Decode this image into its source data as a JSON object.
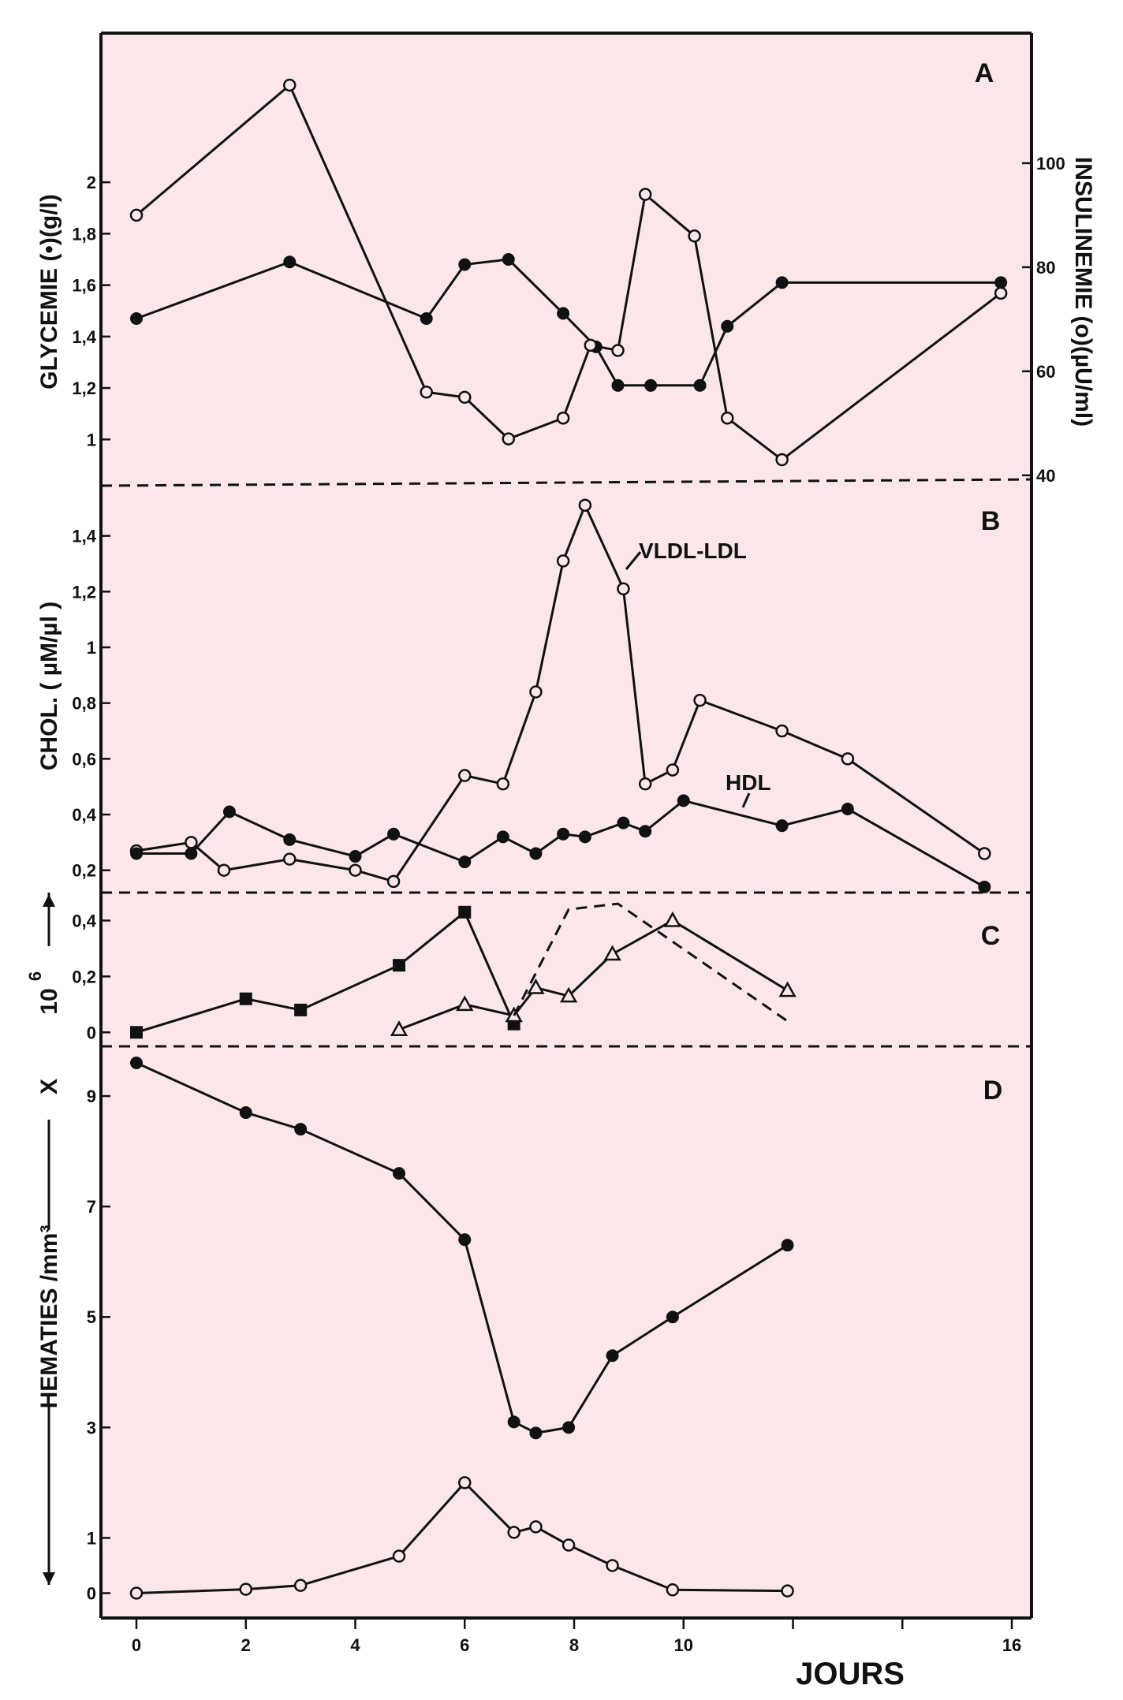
{
  "colors": {
    "panel_bg": "#fbe6e8",
    "ink": "#111111",
    "page_bg": "#ffffff"
  },
  "x_axis": {
    "label": "JOURS",
    "range": [
      0,
      16
    ],
    "ticks": [
      {
        "value": 0,
        "label": "0"
      },
      {
        "value": 2,
        "label": "2"
      },
      {
        "value": 4,
        "label": "4"
      },
      {
        "value": 6,
        "label": "6"
      },
      {
        "value": 8,
        "label": "8"
      },
      {
        "value": 10,
        "label": "10"
      },
      {
        "value": 16,
        "label": "16"
      }
    ]
  },
  "chart_data": [
    {
      "panel": "A",
      "type": "line",
      "ylabel_left": "GLYCEMIE (•)(g/l)",
      "ylabel_right": "INSULINEMIE (o)(µU/ml)",
      "ylim_left": [
        0.82,
        2.58
      ],
      "ylim_right": [
        38,
        125
      ],
      "yticks_left": [
        {
          "value": 1,
          "label": "1"
        },
        {
          "value": 1.2,
          "label": "1,2"
        },
        {
          "value": 1.4,
          "label": "1,4"
        },
        {
          "value": 1.6,
          "label": "1,6"
        },
        {
          "value": 1.8,
          "label": "1,8"
        },
        {
          "value": 2,
          "label": "2"
        }
      ],
      "yticks_right": [
        {
          "value": 40,
          "label": "40"
        },
        {
          "value": 60,
          "label": "60"
        },
        {
          "value": 80,
          "label": "80"
        },
        {
          "value": 100,
          "label": "100"
        }
      ],
      "series": [
        {
          "name": "Glycémie",
          "marker": "filled-circle",
          "axis": "left",
          "x": [
            0,
            2.8,
            5.3,
            6,
            6.8,
            7.8,
            8.4,
            8.8,
            9.4,
            10.3,
            10.8,
            11.8,
            15.8
          ],
          "y": [
            1.47,
            1.69,
            1.47,
            1.68,
            1.7,
            1.49,
            1.36,
            1.21,
            1.21,
            1.21,
            1.44,
            1.61,
            1.61
          ]
        },
        {
          "name": "Insulinémie",
          "marker": "open-circle",
          "axis": "right",
          "x": [
            0,
            2.8,
            5.3,
            6,
            6.8,
            7.8,
            8.3,
            8.8,
            9.3,
            10.2,
            10.8,
            11.8,
            15.8
          ],
          "y": [
            90,
            115,
            56,
            55,
            47,
            51,
            65,
            64,
            94,
            86,
            51,
            43,
            75
          ]
        }
      ]
    },
    {
      "panel": "B",
      "type": "line",
      "ylabel": "CHOL. ( µM/µl )",
      "ylim": [
        0.12,
        1.58
      ],
      "yticks": [
        {
          "value": 0.2,
          "label": "0,2"
        },
        {
          "value": 0.4,
          "label": "0,4"
        },
        {
          "value": 0.6,
          "label": "0,6"
        },
        {
          "value": 0.8,
          "label": "0,8"
        },
        {
          "value": 1,
          "label": "1"
        },
        {
          "value": 1.2,
          "label": "1,2"
        },
        {
          "value": 1.4,
          "label": "1,4"
        }
      ],
      "series": [
        {
          "name": "VLDL-LDL",
          "marker": "open-circle",
          "x": [
            0,
            1,
            1.6,
            2.8,
            4,
            4.7,
            6,
            6.7,
            7.3,
            7.8,
            8.2,
            8.9,
            9.3,
            9.8,
            10.3,
            11.8,
            13,
            15.5
          ],
          "y": [
            0.27,
            0.3,
            0.2,
            0.24,
            0.2,
            0.16,
            0.54,
            0.51,
            0.84,
            1.31,
            1.51,
            1.21,
            0.51,
            0.56,
            0.81,
            0.7,
            0.6,
            0.26
          ]
        },
        {
          "name": "HDL",
          "marker": "filled-circle",
          "x": [
            0,
            1,
            1.7,
            2.8,
            4,
            4.7,
            6,
            6.7,
            7.3,
            7.8,
            8.2,
            8.9,
            9.3,
            10,
            11.8,
            13,
            15.5
          ],
          "y": [
            0.26,
            0.26,
            0.41,
            0.31,
            0.25,
            0.33,
            0.23,
            0.32,
            0.26,
            0.33,
            0.32,
            0.37,
            0.34,
            0.45,
            0.36,
            0.42,
            0.14
          ]
        }
      ],
      "annotations": [
        "VLDL-LDL",
        "HDL"
      ]
    },
    {
      "panel": "C",
      "type": "line",
      "ylim": [
        -0.05,
        0.5
      ],
      "yticks": [
        {
          "value": 0,
          "label": "0"
        },
        {
          "value": 0.2,
          "label": "0,2"
        },
        {
          "value": 0.4,
          "label": "0,4"
        }
      ],
      "series": [
        {
          "name": "filled-square series",
          "marker": "filled-square",
          "x": [
            0,
            2,
            3,
            4.8,
            6,
            6.9
          ],
          "y": [
            0,
            0.12,
            0.08,
            0.24,
            0.43,
            0.03
          ]
        },
        {
          "name": "open-triangle series",
          "marker": "open-triangle",
          "x": [
            4.8,
            6,
            6.9,
            7.3,
            7.9,
            8.7,
            9.8,
            11.9
          ],
          "y": [
            0.01,
            0.1,
            0.06,
            0.16,
            0.13,
            0.28,
            0.4,
            0.15
          ]
        },
        {
          "name": "dashed curve",
          "marker": "none",
          "style": "dashed",
          "x": [
            6.9,
            7.9,
            8.8,
            11.9
          ],
          "y": [
            0.06,
            0.44,
            0.46,
            0.04
          ]
        }
      ]
    },
    {
      "panel": "D",
      "type": "line",
      "ylabel": "HEMATIES /mm³",
      "ylim": [
        -0.45,
        9.9
      ],
      "yticks": [
        {
          "value": 0,
          "label": "0"
        },
        {
          "value": 1,
          "label": "1"
        },
        {
          "value": 3,
          "label": "3"
        },
        {
          "value": 5,
          "label": "5"
        },
        {
          "value": 7,
          "label": "7"
        },
        {
          "value": 9,
          "label": "9"
        }
      ],
      "series": [
        {
          "name": "Hématies",
          "marker": "filled-circle",
          "x": [
            0,
            2,
            3,
            4.8,
            6,
            6.9,
            7.3,
            7.9,
            8.7,
            9.8,
            11.9
          ],
          "y": [
            9.6,
            8.7,
            8.4,
            7.6,
            6.4,
            3.1,
            2.9,
            3.0,
            4.3,
            5.0,
            6.3
          ]
        },
        {
          "name": "open-circle series",
          "marker": "open-circle",
          "x": [
            0,
            2,
            3,
            4.8,
            6,
            6.9,
            7.3,
            7.9,
            8.7,
            9.8,
            11.9
          ],
          "y": [
            0,
            0.07,
            0.14,
            0.67,
            2.0,
            1.1,
            1.2,
            0.87,
            0.5,
            0.06,
            0.04
          ]
        }
      ]
    }
  ],
  "shared_axis": {
    "label_multiplier": "10",
    "label_multiplier_exp": "6",
    "label_x": "X"
  }
}
